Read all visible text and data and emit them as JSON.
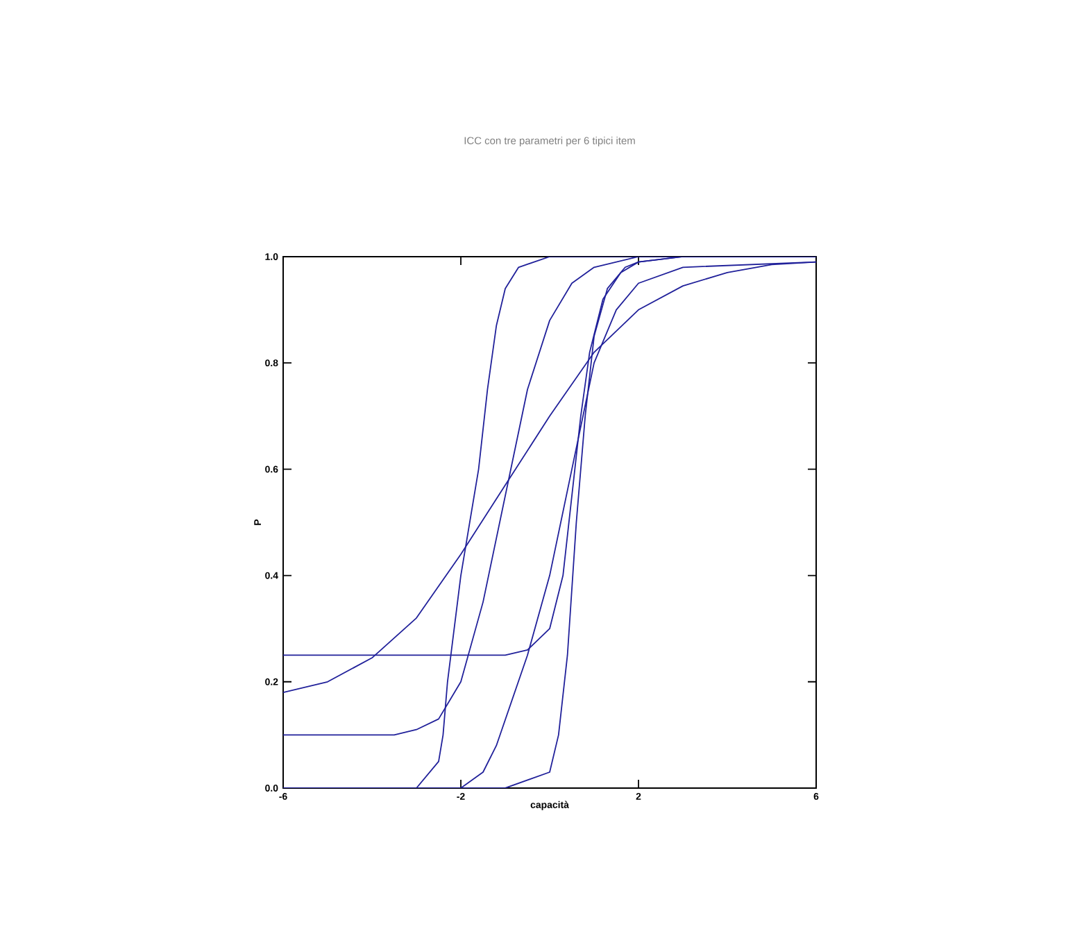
{
  "chart_data": {
    "type": "line",
    "title": "ICC con tre parametri per 6 tipici item",
    "xlabel": "capacità",
    "ylabel": "P",
    "xlim": [
      -6,
      6
    ],
    "ylim": [
      0,
      1
    ],
    "xticks": [
      -6,
      -2,
      2,
      6
    ],
    "yticks": [
      {
        "value": 0,
        "label": "0.0"
      },
      {
        "value": 0.2,
        "label": "0.2"
      },
      {
        "value": 0.4,
        "label": "0.4"
      },
      {
        "value": 0.6,
        "label": "0.6"
      },
      {
        "value": 0.8,
        "label": "0.8"
      },
      {
        "value": 1,
        "label": "1.0"
      }
    ],
    "marker": "none",
    "line_style": "solid",
    "series": [
      {
        "color": "#20209a",
        "x": [
          -6,
          -3,
          -2.5,
          -2.4,
          -2.3,
          -2.0,
          -1.8,
          -1.6,
          -1.4,
          -1.2,
          -1.0,
          -0.7,
          0,
          6
        ],
        "values": [
          0,
          0,
          0.05,
          0.1,
          0.2,
          0.4,
          0.5,
          0.6,
          0.75,
          0.87,
          0.94,
          0.98,
          1,
          1
        ]
      },
      {
        "color": "#20209a",
        "x": [
          -6,
          -3.5,
          -3,
          -2.5,
          -2,
          -1.5,
          -1,
          -0.5,
          0,
          0.5,
          1,
          2,
          6
        ],
        "values": [
          0.1,
          0.1,
          0.11,
          0.13,
          0.2,
          0.35,
          0.55,
          0.75,
          0.88,
          0.95,
          0.98,
          1,
          1
        ]
      },
      {
        "color": "#20209a",
        "x": [
          -6,
          -5,
          -4,
          -3,
          -2,
          -1,
          0,
          1,
          2,
          3,
          4,
          5,
          6
        ],
        "values": [
          0.18,
          0.2,
          0.245,
          0.32,
          0.44,
          0.57,
          0.7,
          0.82,
          0.9,
          0.945,
          0.97,
          0.985,
          0.99
        ]
      },
      {
        "color": "#20209a",
        "x": [
          -6,
          -1,
          -0.5,
          0,
          0.3,
          0.5,
          0.7,
          0.9,
          1.2,
          1.6,
          2,
          3,
          6
        ],
        "values": [
          0.25,
          0.25,
          0.26,
          0.3,
          0.4,
          0.55,
          0.7,
          0.82,
          0.92,
          0.97,
          0.99,
          1,
          1
        ]
      },
      {
        "color": "#20209a",
        "x": [
          -6,
          -2,
          -1.5,
          -1.2,
          -0.5,
          0,
          0.5,
          0.8,
          1,
          1.5,
          2,
          3,
          6
        ],
        "values": [
          0,
          0,
          0.03,
          0.08,
          0.25,
          0.4,
          0.6,
          0.72,
          0.8,
          0.9,
          0.95,
          0.98,
          0.99
        ]
      },
      {
        "color": "#20209a",
        "x": [
          -6,
          -1,
          0,
          0.2,
          0.4,
          0.6,
          0.8,
          1,
          1.3,
          1.7,
          2,
          3,
          6
        ],
        "values": [
          0,
          0,
          0.03,
          0.1,
          0.25,
          0.5,
          0.7,
          0.85,
          0.94,
          0.98,
          0.99,
          1,
          1
        ]
      }
    ]
  }
}
